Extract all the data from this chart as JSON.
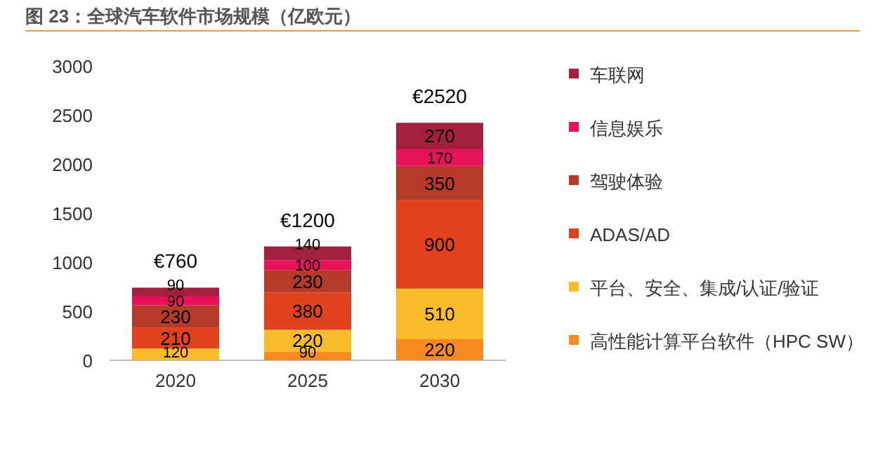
{
  "chart_data": {
    "type": "bar",
    "stacked": true,
    "title": "图 23：全球汽车软件市场规模（亿欧元）",
    "categories": [
      "2020",
      "2025",
      "2030"
    ],
    "series": [
      {
        "name": "高性能计算平台软件（HPC SW）",
        "color": "#f58a1f",
        "values": [
          0,
          90,
          220
        ],
        "value_labels": [
          null,
          "90",
          "220"
        ]
      },
      {
        "name": "平台、安全、集成/认证/验证",
        "color": "#fbbc2a",
        "values": [
          120,
          220,
          510
        ],
        "value_labels": [
          "120",
          "220",
          "510"
        ]
      },
      {
        "name": "ADAS/AD",
        "color": "#e0421b",
        "values": [
          210,
          380,
          900
        ],
        "value_labels": [
          "210",
          "380",
          "900"
        ]
      },
      {
        "name": "驾驶体验",
        "color": "#b53a2a",
        "values": [
          230,
          230,
          350
        ],
        "value_labels": [
          "230",
          "230",
          "350"
        ]
      },
      {
        "name": "信息娱乐",
        "color": "#e8125c",
        "values": [
          90,
          100,
          170
        ],
        "value_labels": [
          "90",
          "100",
          "170"
        ]
      },
      {
        "name": "车联网",
        "color": "#a31f3e",
        "values": [
          90,
          140,
          270
        ],
        "value_labels": [
          "90",
          "140",
          "270"
        ]
      }
    ],
    "annotations": [
      {
        "text": "€760",
        "x": "2020",
        "y": 740
      },
      {
        "text": "€1200",
        "x": "2025",
        "y": 1160
      },
      {
        "text": "€2520",
        "x": "2030",
        "y": 2420
      }
    ],
    "ylim": [
      0,
      3000
    ],
    "yticks": [
      0,
      500,
      1000,
      1500,
      2000,
      2500,
      3000
    ],
    "grid": false,
    "legend": "right"
  }
}
